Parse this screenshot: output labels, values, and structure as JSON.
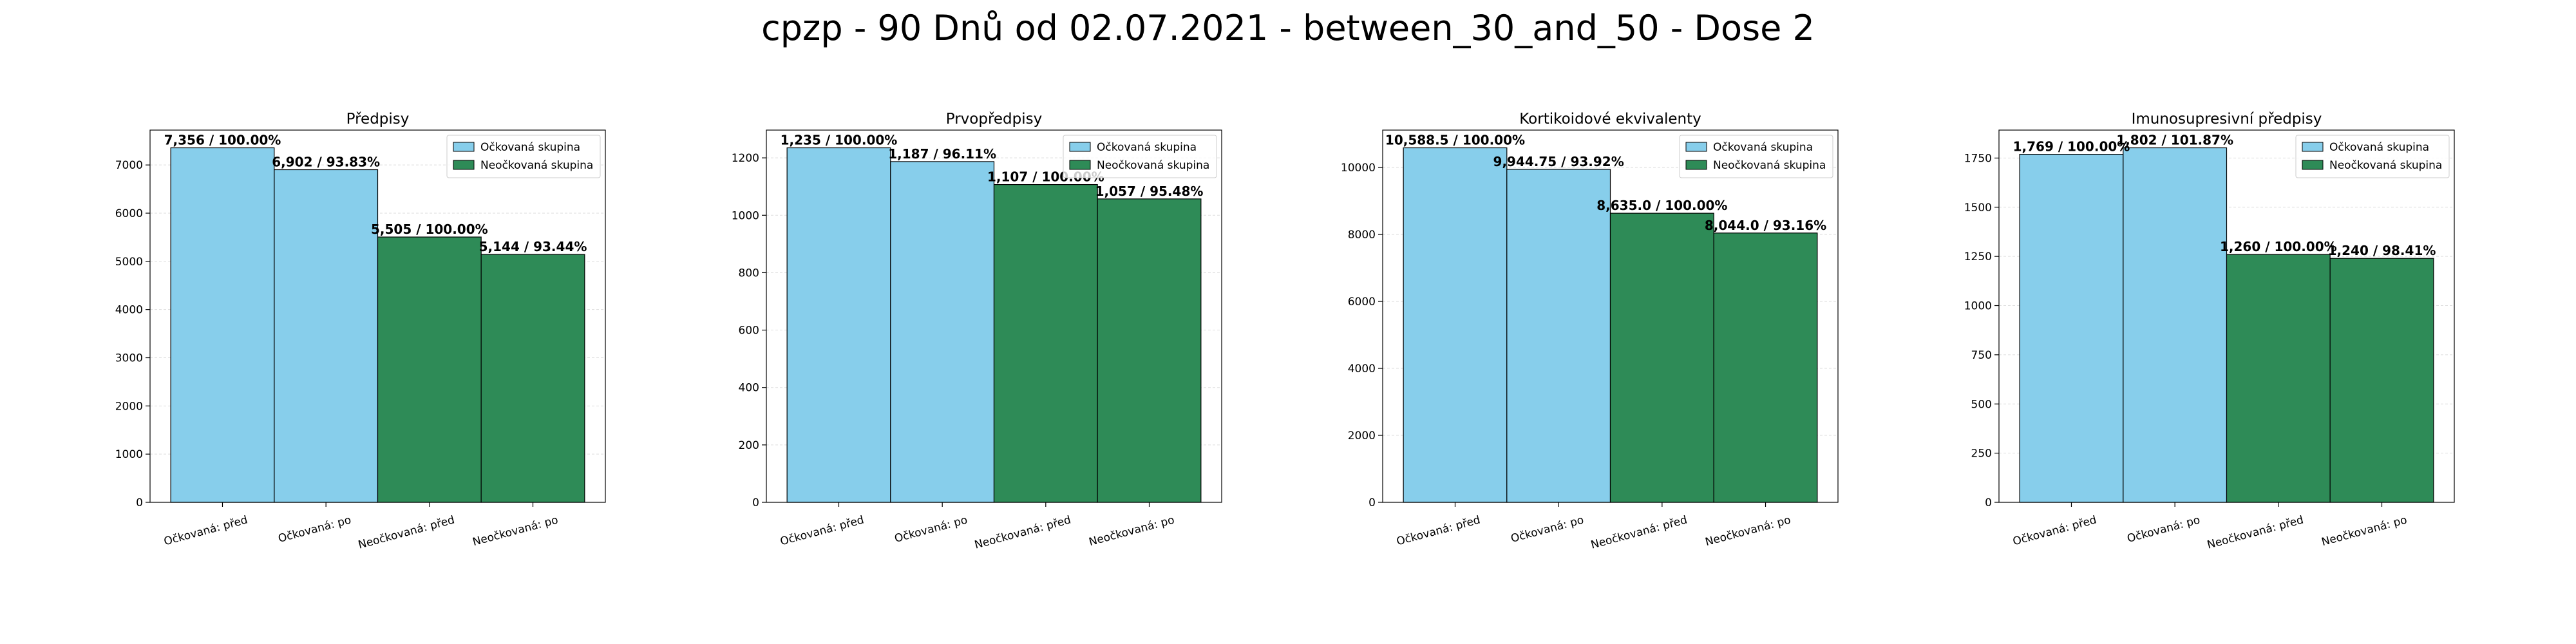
{
  "figure": {
    "title": "cpzp - 90 Dnů od 02.07.2021 - between_30_and_50 - Dose 2"
  },
  "colors": {
    "vaccinated": "#87CEEB",
    "unvaccinated": "#2E8B57",
    "edge": "#000000",
    "grid": "#dddddd"
  },
  "chart_data": [
    {
      "type": "bar",
      "title": "Předpisy",
      "categories": [
        "Očkovaná: před",
        "Očkovaná: po",
        "Neočkovaná: před",
        "Neočkovaná: po"
      ],
      "values": [
        7356,
        6902,
        5505,
        5144
      ],
      "labels": [
        "7,356 / 100.00%",
        "6,902 / 93.83%",
        "5,505 / 100.00%",
        "5,144 / 93.44%"
      ],
      "groups": [
        "vaccinated",
        "vaccinated",
        "unvaccinated",
        "unvaccinated"
      ],
      "yticks": [
        0,
        1000,
        2000,
        3000,
        4000,
        5000,
        6000,
        7000
      ],
      "ylim": [
        0,
        7723.8
      ],
      "legend": [
        "Očkovaná skupina",
        "Neočkovaná skupina"
      ],
      "legend_position": "top-right",
      "grid": true
    },
    {
      "type": "bar",
      "title": "Prvopředpisy",
      "categories": [
        "Očkovaná: před",
        "Očkovaná: po",
        "Neočkovaná: před",
        "Neočkovaná: po"
      ],
      "values": [
        1235,
        1187,
        1107,
        1057
      ],
      "labels": [
        "1,235 / 100.00%",
        "1,187 / 96.11%",
        "1,107 / 100.00%",
        "1,057 / 95.48%"
      ],
      "groups": [
        "vaccinated",
        "vaccinated",
        "unvaccinated",
        "unvaccinated"
      ],
      "yticks": [
        0,
        200,
        400,
        600,
        800,
        1000,
        1200
      ],
      "ylim": [
        0,
        1296.75
      ],
      "legend": [
        "Očkovaná skupina",
        "Neočkovaná skupina"
      ],
      "legend_position": "top-right",
      "grid": true
    },
    {
      "type": "bar",
      "title": "Kortikoidové ekvivalenty",
      "categories": [
        "Očkovaná: před",
        "Očkovaná: po",
        "Neočkovaná: před",
        "Neočkovaná: po"
      ],
      "values": [
        10588.5,
        9944.75,
        8635.0,
        8044.0
      ],
      "labels": [
        "10,588.5 / 100.00%",
        "9,944.75 / 93.92%",
        "8,635.0 / 100.00%",
        "8,044.0 / 93.16%"
      ],
      "groups": [
        "vaccinated",
        "vaccinated",
        "unvaccinated",
        "unvaccinated"
      ],
      "yticks": [
        0,
        2000,
        4000,
        6000,
        8000,
        10000
      ],
      "ylim": [
        0,
        11117.9
      ],
      "legend": [
        "Očkovaná skupina",
        "Neočkovaná skupina"
      ],
      "legend_position": "top-right",
      "grid": true
    },
    {
      "type": "bar",
      "title": "Imunosupresivní předpisy",
      "categories": [
        "Očkovaná: před",
        "Očkovaná: po",
        "Neočkovaná: před",
        "Neočkovaná: po"
      ],
      "values": [
        1769,
        1802,
        1260,
        1240
      ],
      "labels": [
        "1,769 / 100.00%",
        "1,802 / 101.87%",
        "1,260 / 100.00%",
        "1,240 / 98.41%"
      ],
      "groups": [
        "vaccinated",
        "vaccinated",
        "unvaccinated",
        "unvaccinated"
      ],
      "yticks": [
        0,
        250,
        500,
        750,
        1000,
        1250,
        1500,
        1750
      ],
      "ylim": [
        0,
        1892.1
      ],
      "legend": [
        "Očkovaná skupina",
        "Neočkovaná skupina"
      ],
      "legend_position": "top-right",
      "grid": true
    }
  ]
}
